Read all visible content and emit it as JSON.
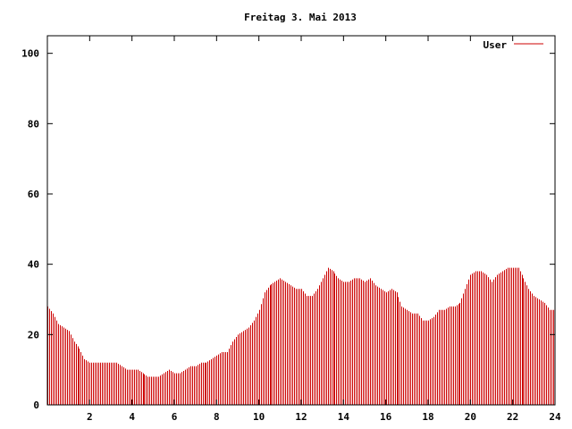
{
  "chart_data": {
    "type": "bar",
    "title": "Freitag 3. Mai 2013",
    "xlabel": "",
    "ylabel": "",
    "xlim": [
      0,
      24
    ],
    "ylim": [
      0,
      105
    ],
    "x_ticks": [
      2,
      4,
      6,
      8,
      10,
      12,
      14,
      16,
      18,
      20,
      22,
      24
    ],
    "y_ticks": [
      0,
      20,
      40,
      60,
      80,
      100
    ],
    "grid": false,
    "legend_position": "top-right",
    "series": [
      {
        "name": "User",
        "color": "#cc0000",
        "points": [
          [
            0.0,
            28
          ],
          [
            0.25,
            26
          ],
          [
            0.5,
            23
          ],
          [
            0.75,
            22
          ],
          [
            1.0,
            21
          ],
          [
            1.25,
            18
          ],
          [
            1.5,
            16
          ],
          [
            1.75,
            13
          ],
          [
            2.0,
            12
          ],
          [
            2.25,
            12
          ],
          [
            2.5,
            12
          ],
          [
            2.75,
            12
          ],
          [
            3.0,
            12
          ],
          [
            3.25,
            12
          ],
          [
            3.5,
            11
          ],
          [
            3.75,
            10
          ],
          [
            4.0,
            10
          ],
          [
            4.25,
            10
          ],
          [
            4.5,
            9
          ],
          [
            4.75,
            8
          ],
          [
            5.0,
            8
          ],
          [
            5.25,
            8
          ],
          [
            5.5,
            9
          ],
          [
            5.75,
            10
          ],
          [
            6.0,
            9
          ],
          [
            6.25,
            9
          ],
          [
            6.5,
            10
          ],
          [
            6.75,
            11
          ],
          [
            7.0,
            11
          ],
          [
            7.25,
            12
          ],
          [
            7.5,
            12
          ],
          [
            7.75,
            13
          ],
          [
            8.0,
            14
          ],
          [
            8.25,
            15
          ],
          [
            8.5,
            15
          ],
          [
            8.75,
            18
          ],
          [
            9.0,
            20
          ],
          [
            9.25,
            21
          ],
          [
            9.5,
            22
          ],
          [
            9.75,
            24
          ],
          [
            10.0,
            27
          ],
          [
            10.25,
            32
          ],
          [
            10.5,
            34
          ],
          [
            10.75,
            35
          ],
          [
            11.0,
            36
          ],
          [
            11.25,
            35
          ],
          [
            11.5,
            34
          ],
          [
            11.75,
            33
          ],
          [
            12.0,
            33
          ],
          [
            12.25,
            31
          ],
          [
            12.5,
            31
          ],
          [
            12.75,
            33
          ],
          [
            13.0,
            36
          ],
          [
            13.25,
            39
          ],
          [
            13.5,
            38
          ],
          [
            13.75,
            36
          ],
          [
            14.0,
            35
          ],
          [
            14.25,
            35
          ],
          [
            14.5,
            36
          ],
          [
            14.75,
            36
          ],
          [
            15.0,
            35
          ],
          [
            15.25,
            36
          ],
          [
            15.5,
            34
          ],
          [
            15.75,
            33
          ],
          [
            16.0,
            32
          ],
          [
            16.25,
            33
          ],
          [
            16.5,
            32
          ],
          [
            16.75,
            28
          ],
          [
            17.0,
            27
          ],
          [
            17.25,
            26
          ],
          [
            17.5,
            26
          ],
          [
            17.75,
            24
          ],
          [
            18.0,
            24
          ],
          [
            18.25,
            25
          ],
          [
            18.5,
            27
          ],
          [
            18.75,
            27
          ],
          [
            19.0,
            28
          ],
          [
            19.25,
            28
          ],
          [
            19.5,
            29
          ],
          [
            19.75,
            33
          ],
          [
            20.0,
            37
          ],
          [
            20.25,
            38
          ],
          [
            20.5,
            38
          ],
          [
            20.75,
            37
          ],
          [
            21.0,
            35
          ],
          [
            21.25,
            37
          ],
          [
            21.5,
            38
          ],
          [
            21.75,
            39
          ],
          [
            22.0,
            39
          ],
          [
            22.25,
            39
          ],
          [
            22.5,
            36
          ],
          [
            22.75,
            33
          ],
          [
            23.0,
            31
          ],
          [
            23.25,
            30
          ],
          [
            23.5,
            29
          ],
          [
            23.75,
            27
          ]
        ]
      }
    ]
  }
}
